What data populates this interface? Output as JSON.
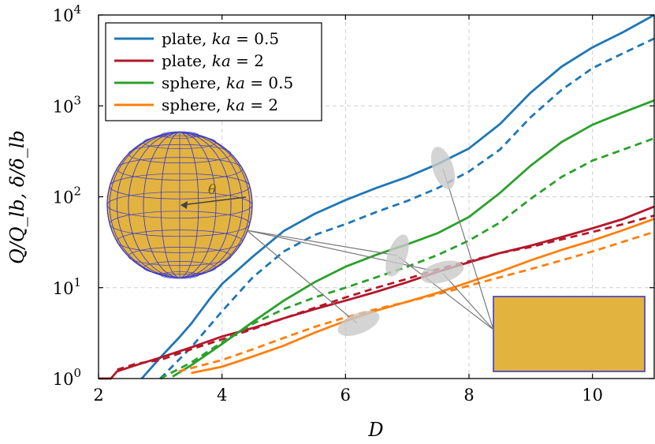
{
  "chart_data": {
    "type": "line",
    "xlabel": "D",
    "ylabel": "Q/Q_lb, δ/δ_lb",
    "xlim": [
      2,
      11
    ],
    "ylim": [
      1,
      10000
    ],
    "yscale": "log",
    "grid": true,
    "legend_position": "top-left",
    "x_ticks": [
      "2",
      "4",
      "6",
      "8",
      "10"
    ],
    "y_ticks": [
      {
        "base": "10",
        "exp": "0"
      },
      {
        "base": "10",
        "exp": "1"
      },
      {
        "base": "10",
        "exp": "2"
      },
      {
        "base": "10",
        "exp": "3"
      },
      {
        "base": "10",
        "exp": "4"
      }
    ],
    "legend": [
      {
        "prefix": "plate, ",
        "param": "ka",
        "value": " = 0.5",
        "color": "#1f77b4"
      },
      {
        "prefix": "plate, ",
        "param": "ka",
        "value": " = 2",
        "color": "#b2182b"
      },
      {
        "prefix": "sphere, ",
        "param": "ka",
        "value": " = 0.5",
        "color": "#2ca02c"
      },
      {
        "prefix": "sphere, ",
        "param": "ka",
        "value": " = 2",
        "color": "#ff7f0e"
      }
    ],
    "inset_symbol": "θ",
    "series": [
      {
        "name": "plate, ka = 0.5",
        "style": "solid",
        "color": "#1f77b4",
        "x": [
          2.7,
          3.0,
          3.3,
          3.5,
          3.8,
          4.0,
          4.5,
          5.0,
          5.5,
          6.0,
          6.5,
          7.0,
          7.5,
          8.0,
          8.5,
          9.0,
          9.5,
          10.0,
          10.5,
          11.0
        ],
        "y": [
          1.0,
          1.7,
          2.8,
          4.0,
          7.5,
          11,
          22,
          42,
          65,
          92,
          125,
          165,
          230,
          340,
          630,
          1400,
          2700,
          4400,
          6500,
          10000
        ]
      },
      {
        "name": "plate, ka = 0.5",
        "style": "dashed",
        "color": "#1f77b4",
        "x": [
          3.0,
          3.5,
          4.0,
          4.5,
          5.0,
          5.5,
          6.0,
          6.5,
          7.0,
          7.5,
          8.0,
          8.5,
          9.0,
          9.5,
          10.0,
          10.5,
          11.0
        ],
        "y": [
          1.0,
          2.2,
          5.5,
          13,
          25,
          38,
          50,
          68,
          90,
          125,
          190,
          330,
          750,
          1500,
          2600,
          3800,
          5500
        ]
      },
      {
        "name": "plate, ka = 2",
        "style": "solid",
        "color": "#b2182b",
        "x": [
          2.0,
          2.2,
          2.3,
          2.6,
          3.0,
          3.5,
          4.0,
          4.5,
          5.0,
          5.5,
          6.0,
          6.5,
          7.0,
          7.5,
          8.0,
          8.5,
          9.0,
          9.5,
          10.0,
          10.5,
          11.0
        ],
        "y": [
          1.0,
          1.0,
          1.2,
          1.4,
          1.7,
          2.2,
          2.9,
          3.6,
          4.6,
          5.8,
          7.2,
          9.0,
          11.5,
          15,
          19,
          24,
          29,
          36,
          45,
          57,
          78
        ]
      },
      {
        "name": "plate, ka = 2",
        "style": "dashed",
        "color": "#b2182b",
        "x": [
          2.3,
          2.6,
          3.0,
          3.5,
          4.0,
          4.5,
          5.0,
          5.5,
          6.0,
          6.5,
          7.0,
          7.5,
          8.0,
          8.5,
          9.0,
          9.5,
          10.0,
          10.5,
          11.0
        ],
        "y": [
          1.25,
          1.45,
          1.6,
          2.1,
          2.7,
          3.5,
          4.6,
          6.0,
          7.8,
          10,
          12.5,
          16,
          19.5,
          24,
          28,
          34,
          41,
          50,
          62
        ]
      },
      {
        "name": "sphere, ka = 0.5",
        "style": "solid",
        "color": "#2ca02c",
        "x": [
          3.2,
          3.5,
          4.0,
          4.5,
          5.0,
          5.5,
          6.0,
          6.5,
          7.0,
          7.5,
          8.0,
          8.5,
          9.0,
          9.5,
          10.0,
          10.5,
          11.0
        ],
        "y": [
          1.05,
          1.4,
          2.4,
          4.2,
          7.2,
          11.5,
          17,
          23,
          30,
          40,
          60,
          110,
          220,
          400,
          620,
          850,
          1150
        ]
      },
      {
        "name": "sphere, ka = 0.5",
        "style": "dashed",
        "color": "#2ca02c",
        "x": [
          3.0,
          3.5,
          4.0,
          4.5,
          5.0,
          5.5,
          6.0,
          6.5,
          7.0,
          7.5,
          8.0,
          8.5,
          9.0,
          9.5,
          10.0,
          10.5,
          11.0
        ],
        "y": [
          1.0,
          1.5,
          2.5,
          4.0,
          5.8,
          7.8,
          10,
          13,
          17,
          23,
          33,
          52,
          95,
          165,
          250,
          330,
          440
        ]
      },
      {
        "name": "sphere, ka = 2",
        "style": "solid",
        "color": "#ff7f0e",
        "x": [
          3.5,
          4.0,
          4.5,
          5.0,
          5.5,
          6.0,
          6.5,
          7.0,
          7.5,
          8.0,
          8.5,
          9.0,
          9.5,
          10.0,
          10.5,
          11.0
        ],
        "y": [
          1.15,
          1.35,
          1.75,
          2.3,
          3.2,
          4.3,
          5.6,
          7.0,
          8.8,
          11.5,
          15,
          20,
          26,
          33,
          43,
          57
        ]
      },
      {
        "name": "sphere, ka = 2",
        "style": "dashed",
        "color": "#ff7f0e",
        "x": [
          3.3,
          4.0,
          4.5,
          5.0,
          5.5,
          6.0,
          6.5,
          7.0,
          7.5,
          8.0,
          8.5,
          9.0,
          9.5,
          10.0,
          10.5,
          11.0
        ],
        "y": [
          1.2,
          1.6,
          2.1,
          2.8,
          3.7,
          4.7,
          5.8,
          7.0,
          8.5,
          10.5,
          13,
          16,
          20,
          25,
          32,
          41
        ]
      }
    ]
  }
}
